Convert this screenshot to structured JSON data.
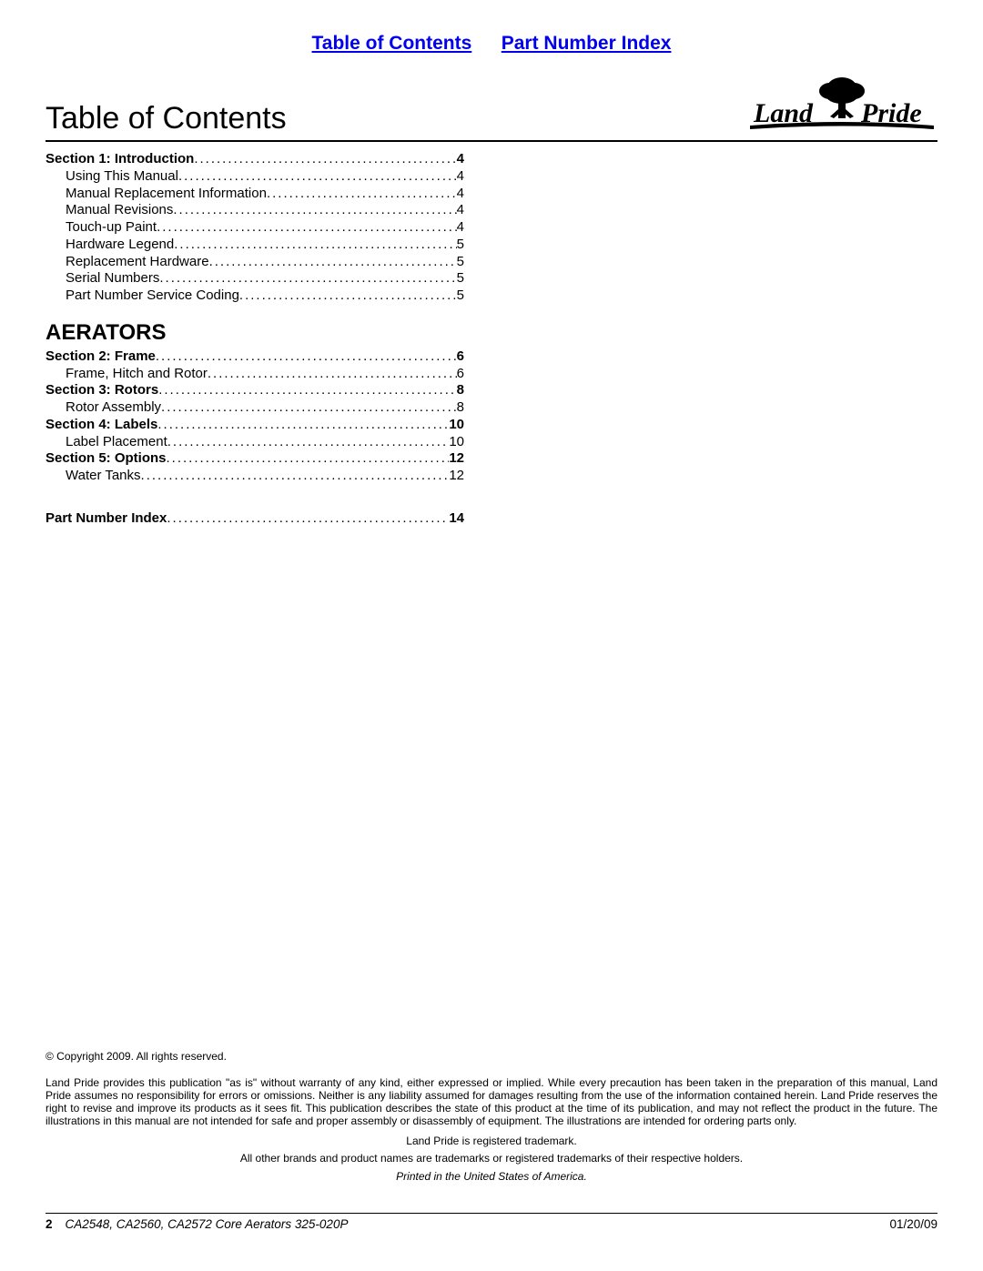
{
  "nav": {
    "toc_link": "Table of Contents",
    "pni_link": "Part Number Index"
  },
  "header": {
    "title": "Table of Contents",
    "logo_text_land": "Land",
    "logo_text_pride": "Pride"
  },
  "toc": {
    "sections": [
      {
        "label": "Section 1: Introduction",
        "page": "4",
        "bold": true,
        "indent": 0
      },
      {
        "label": "Using This Manual",
        "page": "4",
        "bold": false,
        "indent": 1
      },
      {
        "label": "Manual Replacement Information",
        "page": "4",
        "bold": false,
        "indent": 1
      },
      {
        "label": "Manual Revisions",
        "page": "4",
        "bold": false,
        "indent": 1
      },
      {
        "label": "Touch-up Paint",
        "page": "4",
        "bold": false,
        "indent": 1
      },
      {
        "label": "Hardware Legend",
        "page": "5",
        "bold": false,
        "indent": 1
      },
      {
        "label": "Replacement Hardware",
        "page": "5",
        "bold": false,
        "indent": 1
      },
      {
        "label": "Serial Numbers",
        "page": "5",
        "bold": false,
        "indent": 1
      },
      {
        "label": "Part Number Service Coding",
        "page": "5",
        "bold": false,
        "indent": 1
      }
    ],
    "category": "AERATORS",
    "sections2": [
      {
        "label": "Section 2: Frame",
        "page": "6",
        "bold": true,
        "indent": 0
      },
      {
        "label": "Frame, Hitch and Rotor",
        "page": "6",
        "bold": false,
        "indent": 1
      },
      {
        "label": "Section 3: Rotors",
        "page": "8",
        "bold": true,
        "indent": 0
      },
      {
        "label": "Rotor Assembly",
        "page": "8",
        "bold": false,
        "indent": 1
      },
      {
        "label": "Section 4: Labels",
        "page": "10",
        "bold": true,
        "indent": 0
      },
      {
        "label": "Label Placement",
        "page": "10",
        "bold": false,
        "indent": 1
      },
      {
        "label": "Section 5: Options",
        "page": "12",
        "bold": true,
        "indent": 0
      },
      {
        "label": "Water Tanks",
        "page": "12",
        "bold": false,
        "indent": 1
      }
    ],
    "final": {
      "label": "Part Number Index",
      "page": "14",
      "bold": true,
      "indent": 0
    }
  },
  "legal": {
    "copyright": "© Copyright 2009. All rights reserved.",
    "disclaimer": "Land Pride provides this publication \"as is\" without warranty of any kind, either expressed or implied. While every precaution has been taken in the preparation of this manual, Land Pride assumes no responsibility for errors or omissions. Neither is any liability assumed for damages resulting from the use of the information contained herein. Land Pride reserves the right to revise and improve its products as it sees fit. This publication describes the state of this product at the time of its publication, and may not reflect the product in the future. The illustrations in this manual are not intended for safe and proper assembly or disassembly of equipment. The illustrations are intended for ordering parts only.",
    "trademark1": "Land Pride is registered trademark.",
    "trademark2": "All other brands and product names are trademarks or registered trademarks of their respective holders.",
    "printed": "Printed in the United States of America."
  },
  "footer": {
    "page": "2",
    "doc": "CA2548, CA2560, CA2572 Core Aerators 325-020P",
    "date": "01/20/09"
  }
}
